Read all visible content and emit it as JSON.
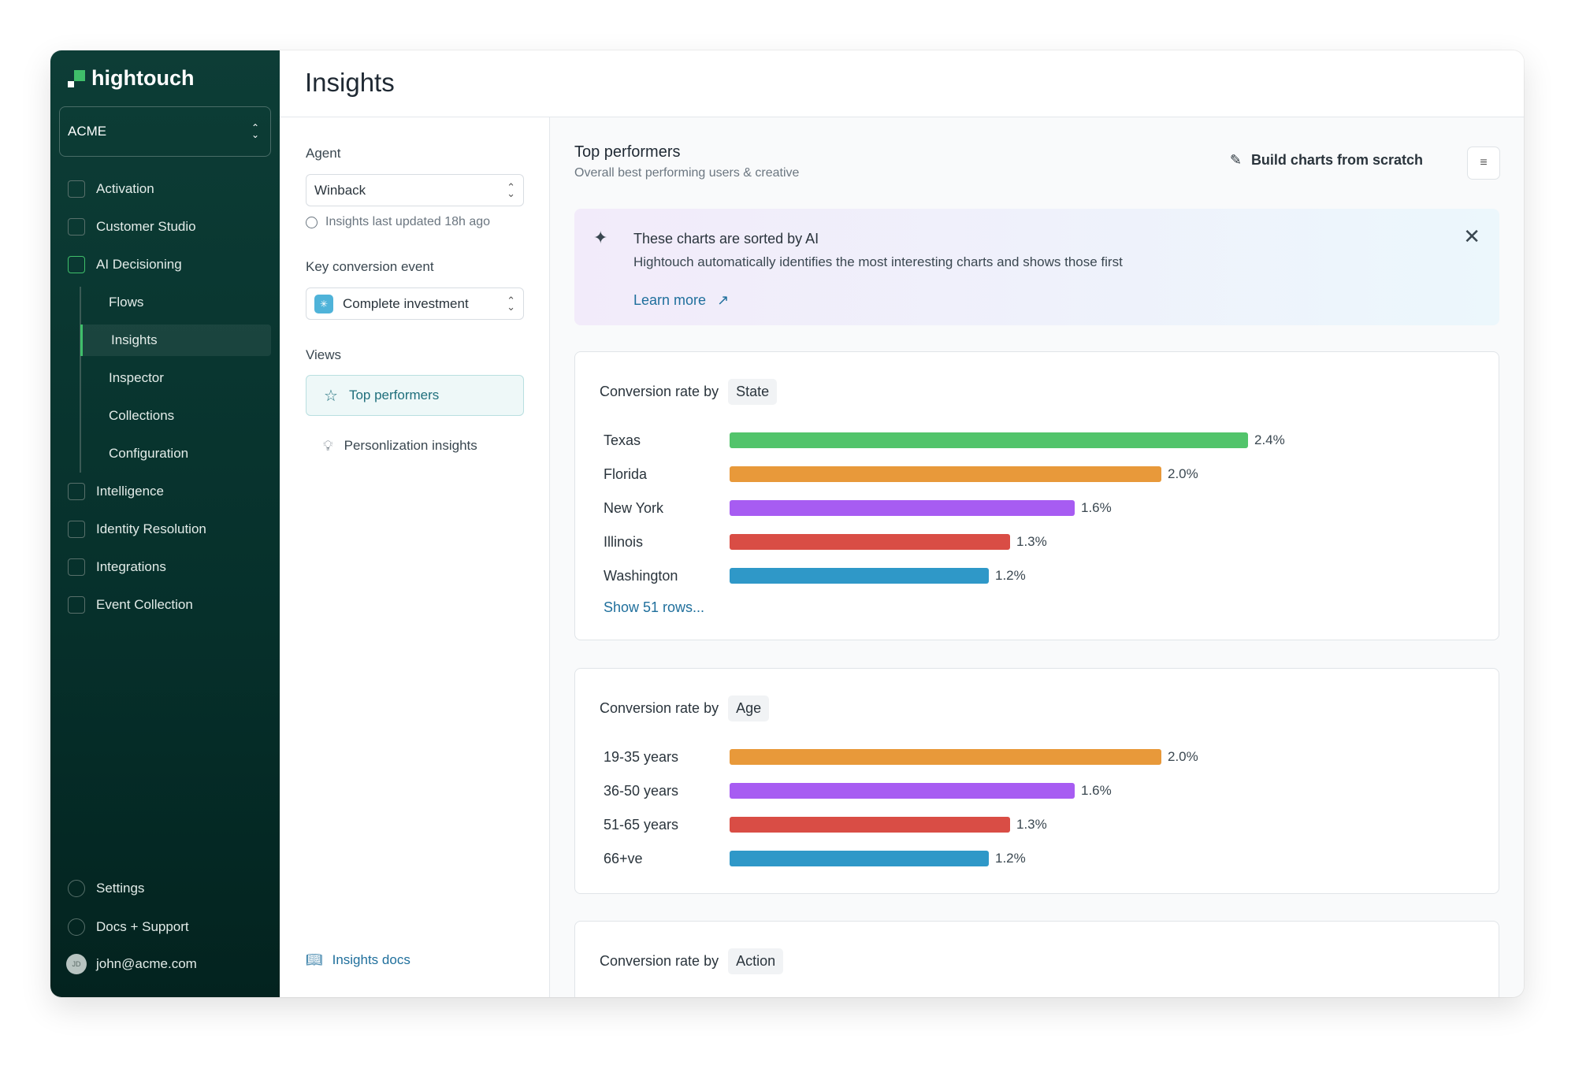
{
  "app": {
    "brand": "hightouch",
    "workspace": "ACME",
    "page_title": "Insights"
  },
  "sidebar": {
    "items": [
      {
        "label": "Activation",
        "icon": "activation-icon"
      },
      {
        "label": "Customer Studio",
        "icon": "customer-studio-icon"
      },
      {
        "label": "AI Decisioning",
        "icon": "ai-decisioning-icon"
      },
      {
        "label": "Flows",
        "sub": true
      },
      {
        "label": "Insights",
        "sub": true,
        "selected": true
      },
      {
        "label": "Inspector",
        "sub": true
      },
      {
        "label": "Collections",
        "sub": true
      },
      {
        "label": "Configuration",
        "sub": true
      },
      {
        "label": "Intelligence",
        "icon": "intelligence-icon"
      },
      {
        "label": "Identity Resolution",
        "icon": "identity-resolution-icon"
      },
      {
        "label": "Integrations",
        "icon": "integrations-icon"
      },
      {
        "label": "Event Collection",
        "icon": "event-collection-icon"
      }
    ],
    "settings": "Settings",
    "docs": "Docs + Support",
    "user": "john@acme.com",
    "user_initials": "JD"
  },
  "panel": {
    "agent_label": "Agent",
    "agent_value": "Winback",
    "last_updated": "Insights last updated 18h ago",
    "conversion_label": "Key conversion event",
    "conversion_value": "Complete investment",
    "views_label": "Views",
    "views": [
      "Top performers",
      "Personlization insights"
    ],
    "docs_link": "Insights docs"
  },
  "main": {
    "title": "Top performers",
    "subtitle": "Overall best performing users & creative",
    "build_button": "Build charts from scratch",
    "banner": {
      "title": "These charts are sorted by AI",
      "text": "Hightouch automatically identifies the most interesting charts and shows those first",
      "link": "Learn more"
    }
  },
  "colors": {
    "green": "#52c46b",
    "orange": "#e8993a",
    "purple": "#a75cf2",
    "red": "#d94d45",
    "blue": "#2f98c8"
  },
  "chart_data": [
    {
      "type": "bar",
      "title_prefix": "Conversion rate by",
      "dimension": "State",
      "categories": [
        "Texas",
        "Florida",
        "New York",
        "Illinois",
        "Washington"
      ],
      "values": [
        2.4,
        2.0,
        1.6,
        1.3,
        1.2
      ],
      "labels": [
        "2.4%",
        "2.0%",
        "1.6%",
        "1.3%",
        "1.2%"
      ],
      "colors": [
        "#52c46b",
        "#e8993a",
        "#a75cf2",
        "#d94d45",
        "#2f98c8"
      ],
      "more_link": "Show 51 rows..."
    },
    {
      "type": "bar",
      "title_prefix": "Conversion rate by",
      "dimension": "Age",
      "categories": [
        "19-35 years",
        "36-50 years",
        "51-65 years",
        "66+ve"
      ],
      "values": [
        2.0,
        1.6,
        1.3,
        1.2
      ],
      "labels": [
        "2.0%",
        "1.6%",
        "1.3%",
        "1.2%"
      ],
      "colors": [
        "#e8993a",
        "#a75cf2",
        "#d94d45",
        "#2f98c8"
      ]
    },
    {
      "type": "bar",
      "title_prefix": "Conversion rate by",
      "dimension": "Action",
      "categories": [],
      "values": []
    }
  ]
}
